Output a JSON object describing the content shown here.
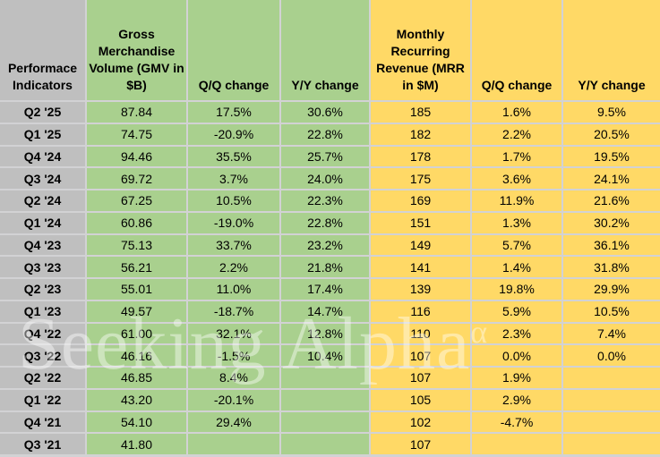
{
  "chart_data": {
    "type": "table",
    "title": "Performace Indicators — GMV and MRR quarterly metrics",
    "columns": [
      "Performace Indicators",
      "Gross Merchandise Volume (GMV in $B)",
      "Q/Q change",
      "Y/Y change",
      "Monthly Recurring Revenue (MRR in $M)",
      "Q/Q change",
      "Y/Y change"
    ],
    "rows": [
      [
        "Q2 '25",
        "87.84",
        "17.5%",
        "30.6%",
        "185",
        "1.6%",
        "9.5%"
      ],
      [
        "Q1 '25",
        "74.75",
        "-20.9%",
        "22.8%",
        "182",
        "2.2%",
        "20.5%"
      ],
      [
        "Q4 '24",
        "94.46",
        "35.5%",
        "25.7%",
        "178",
        "1.7%",
        "19.5%"
      ],
      [
        "Q3 '24",
        "69.72",
        "3.7%",
        "24.0%",
        "175",
        "3.6%",
        "24.1%"
      ],
      [
        "Q2 '24",
        "67.25",
        "10.5%",
        "22.3%",
        "169",
        "11.9%",
        "21.6%"
      ],
      [
        "Q1 '24",
        "60.86",
        "-19.0%",
        "22.8%",
        "151",
        "1.3%",
        "30.2%"
      ],
      [
        "Q4 '23",
        "75.13",
        "33.7%",
        "23.2%",
        "149",
        "5.7%",
        "36.1%"
      ],
      [
        "Q3 '23",
        "56.21",
        "2.2%",
        "21.8%",
        "141",
        "1.4%",
        "31.8%"
      ],
      [
        "Q2 '23",
        "55.01",
        "11.0%",
        "17.4%",
        "139",
        "19.8%",
        "29.9%"
      ],
      [
        "Q1 '23",
        "49.57",
        "-18.7%",
        "14.7%",
        "116",
        "5.9%",
        "10.5%"
      ],
      [
        "Q4 '22",
        "61.00",
        "32.1%",
        "12.8%",
        "110",
        "2.3%",
        "7.4%"
      ],
      [
        "Q3 '22",
        "46.16",
        "-1.5%",
        "10.4%",
        "107",
        "0.0%",
        "0.0%"
      ],
      [
        "Q2 '22",
        "46.85",
        "8.4%",
        "",
        "107",
        "1.9%",
        ""
      ],
      [
        "Q1 '22",
        "43.20",
        "-20.1%",
        "",
        "105",
        "2.9%",
        ""
      ],
      [
        "Q4 '21",
        "54.10",
        "29.4%",
        "",
        "102",
        "-4.7%",
        ""
      ],
      [
        "Q3 '21",
        "41.80",
        "",
        "",
        "107",
        "",
        ""
      ]
    ]
  },
  "watermark": {
    "text": "Seeking Alpha",
    "superscript": "α"
  },
  "colors": {
    "gmv_fill": "#A9D08E",
    "mrr_fill": "#FFD966",
    "label_fill": "#BFBFBF",
    "gridline": "#D2D2D4",
    "text": "#000000"
  }
}
